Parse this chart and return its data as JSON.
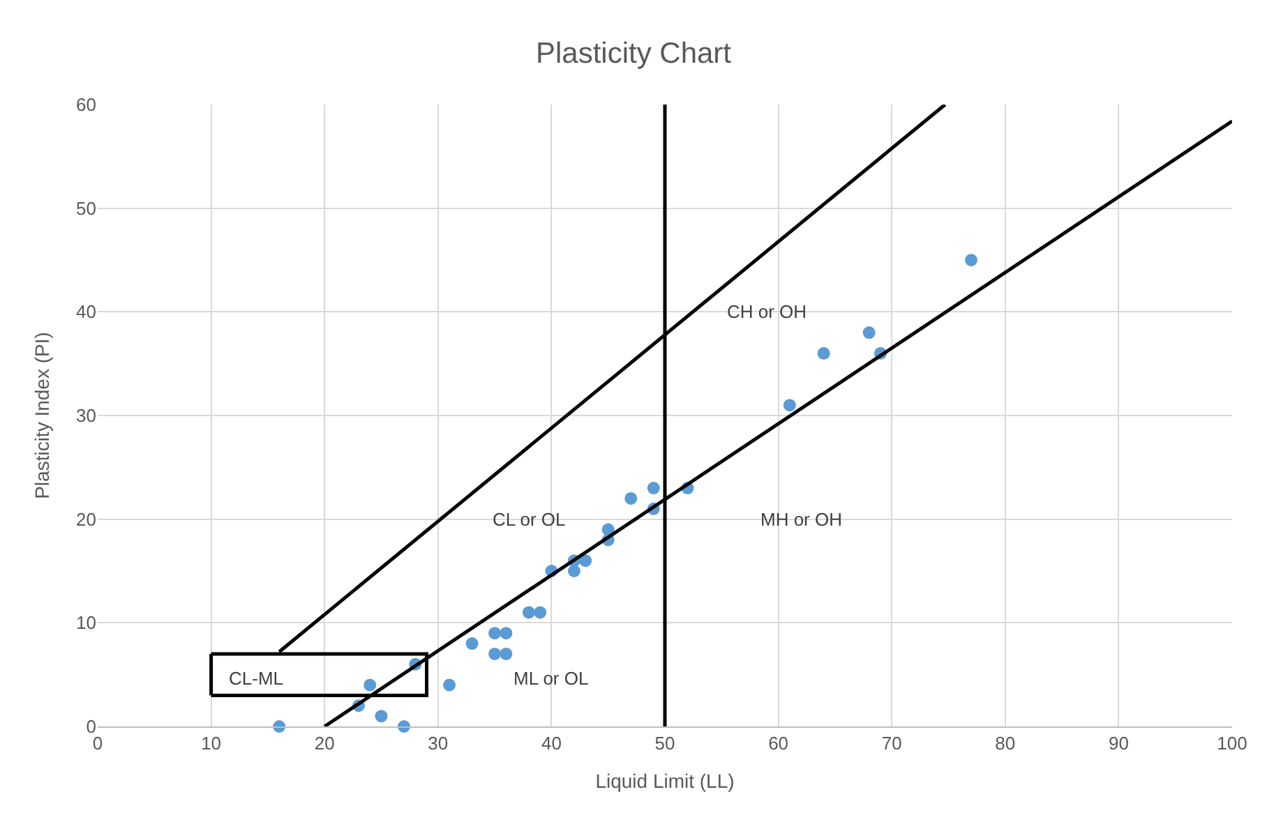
{
  "chart_data": {
    "type": "scatter",
    "title": "Plasticity Chart",
    "xlabel": "Liquid Limit (LL)",
    "ylabel": "Plasticity Index (PI)",
    "xlim": [
      0,
      100
    ],
    "ylim": [
      0,
      60
    ],
    "xticks": [
      0,
      10,
      20,
      30,
      40,
      50,
      60,
      70,
      80,
      90,
      100
    ],
    "yticks": [
      0,
      10,
      20,
      30,
      40,
      50,
      60
    ],
    "grid": true,
    "series": [
      {
        "marker": "circle",
        "color": "#5b9bd5",
        "x": [
          16,
          23,
          24,
          25,
          27,
          28,
          31,
          33,
          35,
          36,
          35,
          36,
          38,
          39,
          40,
          42,
          42,
          43,
          45,
          45,
          47,
          49,
          49,
          52,
          61,
          64,
          68,
          69,
          77
        ],
        "values": [
          0,
          2,
          4,
          1,
          0,
          6,
          4,
          8,
          9,
          9,
          7,
          7,
          11,
          11,
          15,
          16,
          15,
          16,
          19,
          18,
          22,
          23,
          21,
          23,
          31,
          36,
          38,
          36,
          45
        ]
      },
      {
        "type": "line",
        "marker": "none",
        "color": "#000000",
        "x": [
          20,
          100
        ],
        "values": [
          0,
          58.4
        ]
      },
      {
        "type": "line",
        "marker": "none",
        "color": "#000000",
        "x": [
          16,
          74.7
        ],
        "values": [
          7.2,
          60
        ]
      },
      {
        "type": "line",
        "marker": "none",
        "color": "#000000",
        "x": [
          50,
          50
        ],
        "values": [
          0,
          60
        ]
      },
      {
        "type": "line",
        "marker": "none",
        "color": "#000000",
        "x": [
          10,
          29,
          29,
          10
        ],
        "values": [
          3,
          3,
          7,
          7
        ]
      },
      {
        "type": "line",
        "marker": "none",
        "color": "#000000",
        "x": [
          10,
          10
        ],
        "values": [
          7,
          3
        ]
      }
    ],
    "annotations": [
      "CH or OH",
      "CL or OL",
      "MH or OH",
      "ML or OL",
      "CL-ML"
    ]
  }
}
